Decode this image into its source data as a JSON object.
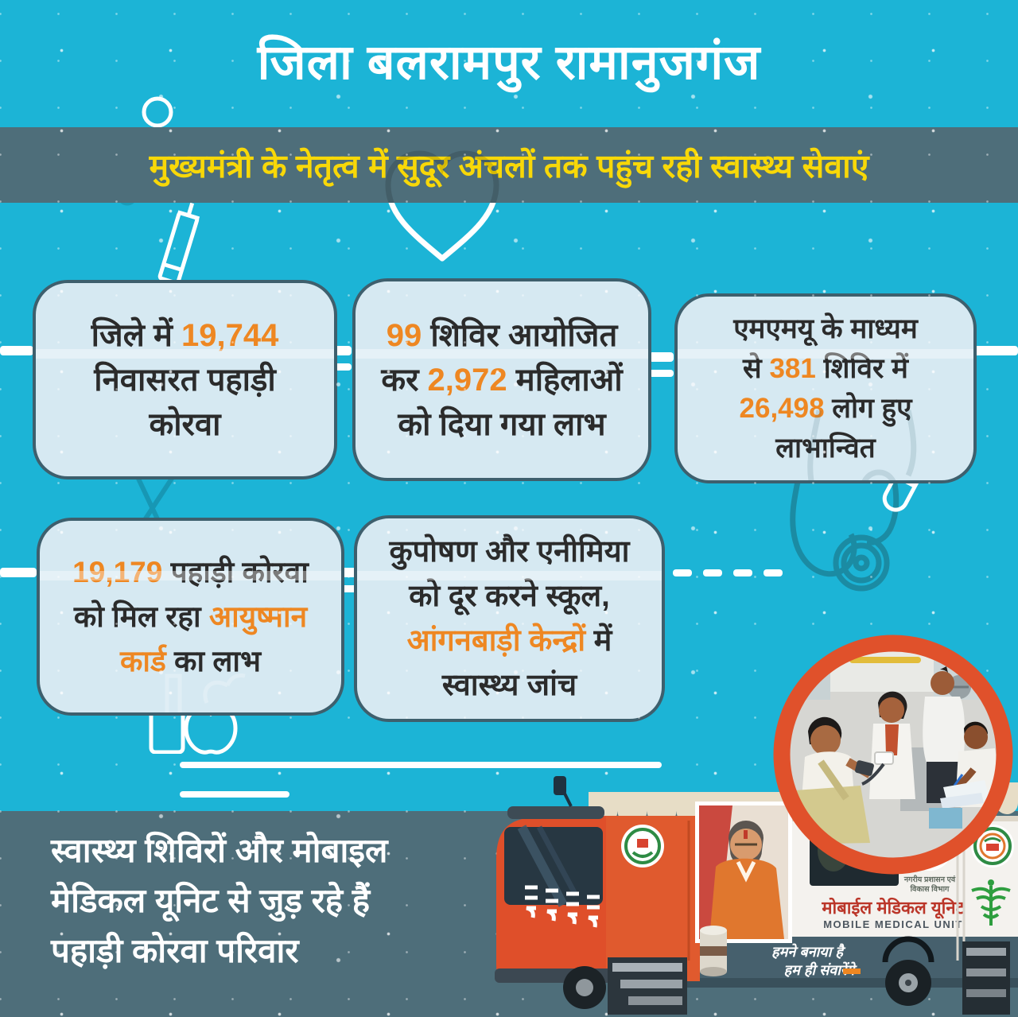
{
  "title": "जिला बलरामपुर रामानुजगंज",
  "banner": {
    "text": "मुख्यमंत्री के नेतृत्व में सुदूर अंचलों तक पहुंच रही स्वास्थ्य सेवाएं"
  },
  "stat_boxes": {
    "residents": {
      "lines": [
        [
          {
            "t": "जिले में ",
            "hl": false
          },
          {
            "t": "19,744",
            "hl": true
          }
        ],
        [
          {
            "t": "निवासरत पहाड़ी",
            "hl": false
          }
        ],
        [
          {
            "t": "कोरवा",
            "hl": false
          }
        ]
      ]
    },
    "camps_women": {
      "lines": [
        [
          {
            "t": "99",
            "hl": true
          },
          {
            "t": " शिविर आयोजित",
            "hl": false
          }
        ],
        [
          {
            "t": "कर ",
            "hl": false
          },
          {
            "t": "2,972",
            "hl": true
          },
          {
            "t": " महिलाओं",
            "hl": false
          }
        ],
        [
          {
            "t": "को दिया गया लाभ",
            "hl": false
          }
        ]
      ]
    },
    "mmu_camps": {
      "lines": [
        [
          {
            "t": "एमएमयू के माध्यम",
            "hl": false
          }
        ],
        [
          {
            "t": "से ",
            "hl": false
          },
          {
            "t": "381",
            "hl": true
          },
          {
            "t": " शिविर में",
            "hl": false
          }
        ],
        [
          {
            "t": "26,498",
            "hl": true
          },
          {
            "t": " लोग हुए",
            "hl": false
          }
        ],
        [
          {
            "t": "लाभान्वित",
            "hl": false
          }
        ]
      ]
    },
    "ayushman": {
      "lines": [
        [
          {
            "t": "19,179",
            "hl": true
          },
          {
            "t": " पहाड़ी कोरवा",
            "hl": false
          }
        ],
        [
          {
            "t": "को मिल रहा ",
            "hl": false
          },
          {
            "t": "आयुष्मान",
            "hl": true
          }
        ],
        [
          {
            "t": "कार्ड",
            "hl": true
          },
          {
            "t": " का लाभ",
            "hl": false
          }
        ]
      ]
    },
    "anganwadi": {
      "lines": [
        [
          {
            "t": "कुपोषण और एनीमिया",
            "hl": false
          }
        ],
        [
          {
            "t": "को दूर करने स्कूल,",
            "hl": false
          }
        ],
        [
          {
            "t": "आंगनबाड़ी केन्द्रों",
            "hl": true
          },
          {
            "t": " में",
            "hl": false
          }
        ],
        [
          {
            "t": "स्वास्थ्य जांच",
            "hl": false
          }
        ]
      ]
    }
  },
  "footer": {
    "lines": [
      "स्वास्थ्य शिविरों और मोबाइल",
      "मेडिकल यूनिट से जुड़ रहे हैं",
      "पहाड़ी कोरवा परिवार"
    ]
  },
  "van": {
    "hindi_label": "मोबाईल मेडिकल यूनिट",
    "english_label": "MOBILE MEDICAL UNIT",
    "slogan_line1": "हमने बनाया है",
    "slogan_line2": "हम ही संवारेंगे",
    "dept_line1": "नगरीय प्रशासन एवं",
    "dept_line2": "विकास विभाग"
  },
  "icons": [
    "syringe-icon",
    "heart-icon",
    "stethoscope-icon",
    "capsule-icon",
    "bottle-icon",
    "apple-icon",
    "caduceus-icon",
    "circle-doodle-icon",
    "scissors-doodle-icon",
    "health-mission-logo",
    "state-emblem-logo"
  ],
  "colors": {
    "background": "#1cb4d6",
    "panel": "#4e6e7a",
    "box_fill": "#d6e9f2",
    "box_border": "#3e5f6d",
    "highlight": "#ee8722",
    "banner_text": "#f8d808",
    "text_dark": "#2b2b2b",
    "van_orange": "#e0502a",
    "ring_orange": "#e0512b"
  }
}
